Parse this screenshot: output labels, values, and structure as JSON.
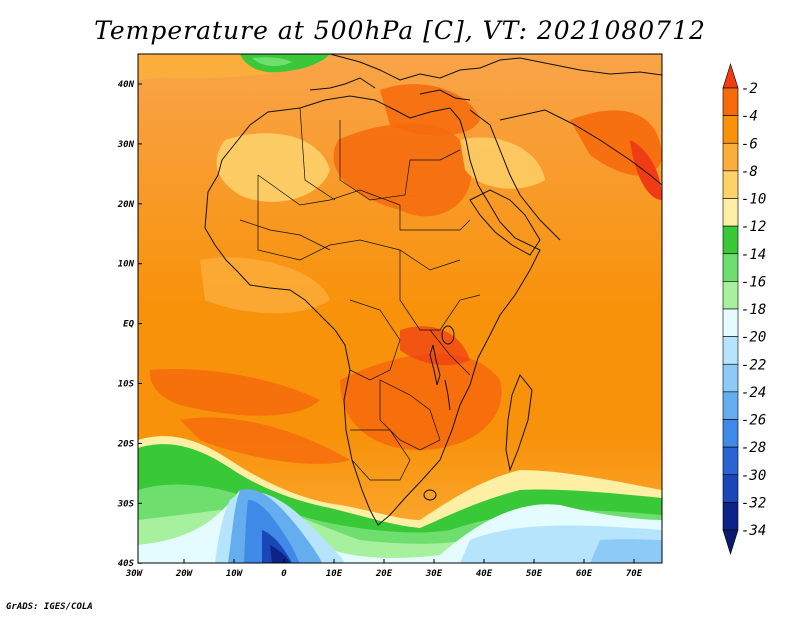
{
  "title": "Temperature at 500hPa [C], VT: 2021080712",
  "footer": "GrADS: IGES/COLA",
  "axes": {
    "x_ticks": [
      "30W",
      "20W",
      "10W",
      "0",
      "10E",
      "20E",
      "30E",
      "40E",
      "50E",
      "60E",
      "70E"
    ],
    "y_ticks": [
      "40N",
      "30N",
      "20N",
      "10N",
      "EQ",
      "10S",
      "20S",
      "30S",
      "40S"
    ]
  },
  "colorbar": {
    "labels": [
      "-2",
      "-4",
      "-6",
      "-8",
      "-10",
      "-12",
      "-14",
      "-16",
      "-18",
      "-20",
      "-22",
      "-24",
      "-26",
      "-28",
      "-30",
      "-32",
      "-34"
    ],
    "colors": [
      "#f03c14",
      "#f66a0c",
      "#f8920a",
      "#fbae3c",
      "#fdd26a",
      "#fdf0a4",
      "#38c838",
      "#6ede6e",
      "#a6f09e",
      "#e4fcff",
      "#b6e4fc",
      "#8ecaf8",
      "#64aef0",
      "#3f8ae6",
      "#2a64d2",
      "#1a46b6",
      "#0c2488",
      "#0a1a6e"
    ]
  },
  "map": {
    "region": "Africa",
    "lon_range": [
      -30,
      75
    ],
    "lat_range": [
      -40,
      45
    ]
  }
}
